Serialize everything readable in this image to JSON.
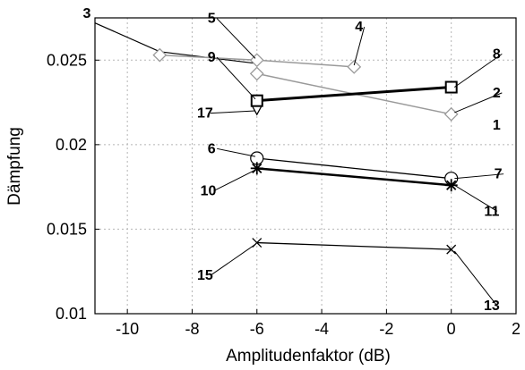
{
  "chart_data": {
    "type": "line",
    "title": "",
    "xlabel": "Amplitudenfaktor (dB)",
    "ylabel": "Dämpfung",
    "xlim": [
      -11,
      2
    ],
    "ylim": [
      0.01,
      0.0275
    ],
    "xticks": [
      -10,
      -8,
      -6,
      -4,
      -2,
      0,
      2
    ],
    "yticks": [
      0.01,
      0.015,
      0.02,
      0.025
    ],
    "xtick_labels": [
      "-10",
      "-8",
      "-6",
      "-4",
      "-2",
      "0",
      "2"
    ],
    "ytick_labels": [
      "0.01",
      "0.015",
      "0.02",
      "0.025"
    ],
    "grid": true,
    "series": [
      {
        "x": [
          -11,
          -9,
          -6
        ],
        "y": [
          0.0272,
          0.0255,
          0.0248
        ],
        "marker": "none",
        "color": "#000000",
        "width": 1.2
      },
      {
        "x": [
          -9,
          -6,
          -3
        ],
        "y": [
          0.0253,
          0.025,
          0.0246
        ],
        "marker": "diamond",
        "color": "#9a9a9a",
        "width": 1.5
      },
      {
        "x": [
          -6,
          0
        ],
        "y": [
          0.0242,
          0.0218
        ],
        "marker": "diamond",
        "color": "#9a9a9a",
        "width": 1.5
      },
      {
        "x": [
          -6
        ],
        "y": [
          0.0221
        ],
        "marker": "triangle-down",
        "color": "#000000",
        "width": 1.2
      },
      {
        "x": [
          -6,
          0
        ],
        "y": [
          0.0226,
          0.0234
        ],
        "marker": "square",
        "color": "#000000",
        "width": 3
      },
      {
        "x": [
          -6,
          0
        ],
        "y": [
          0.0192,
          0.018
        ],
        "marker": "circle",
        "color": "#000000",
        "width": 1.3
      },
      {
        "x": [
          -6,
          0
        ],
        "y": [
          0.0186,
          0.0176
        ],
        "marker": "star",
        "color": "#000000",
        "width": 2.5
      },
      {
        "x": [
          -6,
          0
        ],
        "y": [
          0.0142,
          0.0138
        ],
        "marker": "x",
        "color": "#000000",
        "width": 1.3
      }
    ],
    "annotations": [
      {
        "text": "3",
        "x": -11.25,
        "y": 0.0275,
        "ax": null,
        "ay": null
      },
      {
        "text": "5",
        "x": -7.4,
        "y": 0.0272,
        "ax": -6.05,
        "ay": 0.0251
      },
      {
        "text": "4",
        "x": -2.85,
        "y": 0.0267,
        "ax": -3.0,
        "ay": 0.0247
      },
      {
        "text": "9",
        "x": -7.4,
        "y": 0.0249,
        "ax": -6.05,
        "ay": 0.0227
      },
      {
        "text": "17",
        "x": -7.6,
        "y": 0.0216,
        "ax": -6.05,
        "ay": 0.022
      },
      {
        "text": "8",
        "x": 1.4,
        "y": 0.0251,
        "ax": 0.1,
        "ay": 0.0234
      },
      {
        "text": "2",
        "x": 1.4,
        "y": 0.0228,
        "ax": 0.1,
        "ay": 0.0219
      },
      {
        "text": "1",
        "x": 1.4,
        "y": 0.0209,
        "ax": null,
        "ay": null
      },
      {
        "text": "6",
        "x": -7.4,
        "y": 0.0195,
        "ax": -6.05,
        "ay": 0.0193
      },
      {
        "text": "7",
        "x": 1.45,
        "y": 0.018,
        "ax": 0.1,
        "ay": 0.018
      },
      {
        "text": "10",
        "x": -7.5,
        "y": 0.017,
        "ax": -6.05,
        "ay": 0.0185
      },
      {
        "text": "11",
        "x": 1.25,
        "y": 0.0158,
        "ax": 0.1,
        "ay": 0.0176
      },
      {
        "text": "15",
        "x": -7.6,
        "y": 0.012,
        "ax": -6.05,
        "ay": 0.0141
      },
      {
        "text": "13",
        "x": 1.25,
        "y": 0.0102,
        "ax": 0.1,
        "ay": 0.0137
      }
    ]
  }
}
